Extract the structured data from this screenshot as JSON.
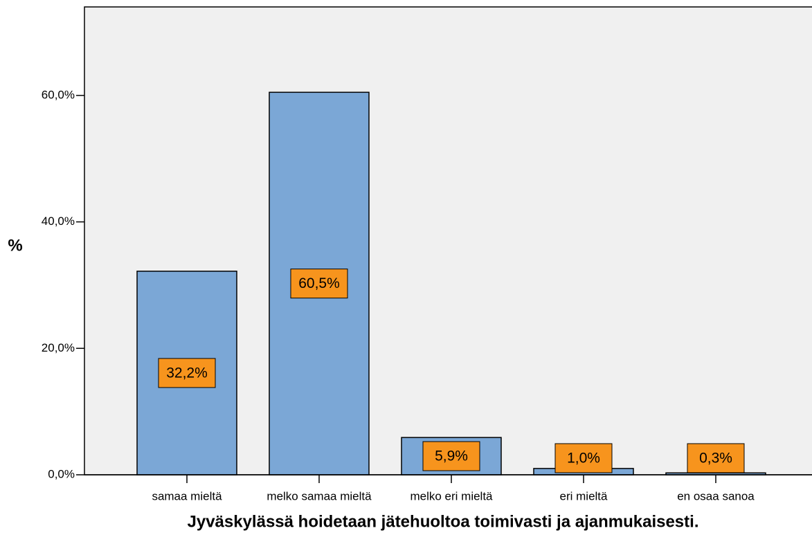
{
  "chart_data": {
    "type": "bar",
    "xlabel": "Jyväskylässä hoidetaan jätehuoltoa toimivasti ja ajanmukaisesti.",
    "ylabel": "%",
    "categories": [
      "samaa mieltä",
      "melko samaa mieltä",
      "melko eri mieltä",
      "eri mieltä",
      "en osaa sanoa"
    ],
    "values": [
      32.2,
      60.5,
      5.9,
      1.0,
      0.3
    ],
    "value_labels": [
      "32,2%",
      "60,5%",
      "5,9%",
      "1,0%",
      "0,3%"
    ],
    "color": "#7ba7d6",
    "label_color": "#f7941d",
    "ylim": [
      0,
      74
    ],
    "yticks": [
      {
        "value": 0,
        "label": "0,0%"
      },
      {
        "value": 20,
        "label": "20,0%"
      },
      {
        "value": 40,
        "label": "40,0%"
      },
      {
        "value": 60,
        "label": "60,0%"
      }
    ],
    "grid": false
  }
}
